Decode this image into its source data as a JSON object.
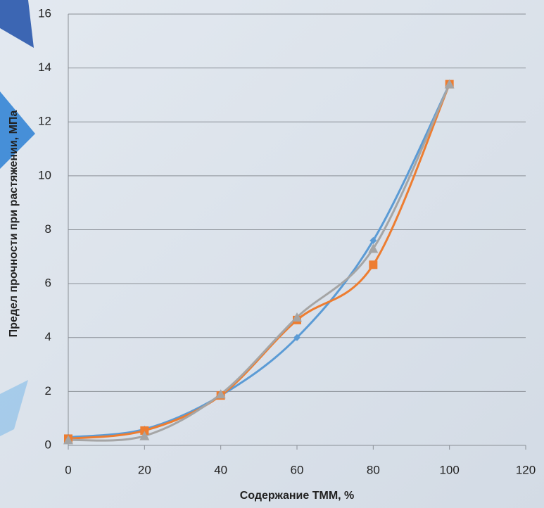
{
  "chart_data": {
    "type": "line",
    "x_label": "Содержание ТММ, %",
    "y_label": "Предел прочности при растяжении, МПа",
    "x": [
      0,
      20,
      40,
      60,
      80,
      100
    ],
    "series": [
      {
        "color": "#5b9bd5",
        "marker": "diamond",
        "values": [
          0.3,
          0.6,
          1.85,
          4.0,
          7.6,
          13.4
        ]
      },
      {
        "color": "#ed7d31",
        "marker": "square",
        "values": [
          0.25,
          0.55,
          1.85,
          4.65,
          6.7,
          13.4
        ]
      },
      {
        "color": "#a5a5a5",
        "marker": "triangle",
        "values": [
          0.2,
          0.35,
          1.9,
          4.75,
          7.3,
          13.4
        ]
      }
    ],
    "xlim": [
      0,
      120
    ],
    "xticks": [
      0,
      20,
      40,
      60,
      80,
      100,
      120
    ],
    "ylim": [
      0,
      16
    ],
    "yticks": [
      0,
      2,
      4,
      6,
      8,
      10,
      12,
      14,
      16
    ],
    "grid": true,
    "smooth": true
  }
}
